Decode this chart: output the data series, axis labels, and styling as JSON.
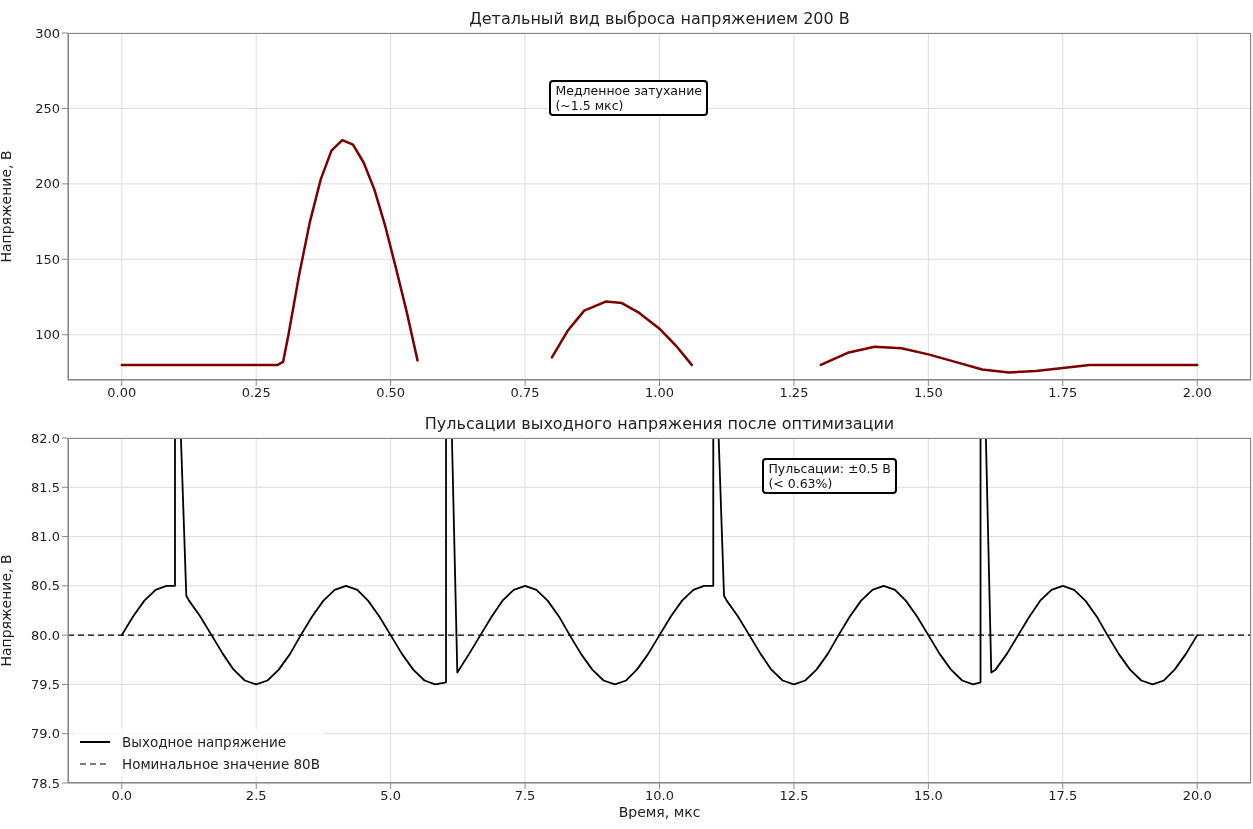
{
  "chart_data": [
    {
      "type": "line",
      "title": "Детальный вид выброса напряжением 200 В",
      "ylabel": "Напряжение, В",
      "annotations": [
        "Медленное затухание\n(~1.5 мкс)"
      ],
      "x": [
        0,
        0.29,
        0.3,
        0.31,
        0.33,
        0.35,
        0.37,
        0.39,
        0.41,
        0.43,
        0.45,
        0.47,
        0.49,
        0.51,
        0.53,
        0.55,
        0.556,
        0.67,
        0.785,
        0.8,
        0.83,
        0.86,
        0.9,
        0.93,
        0.96,
        1.0,
        1.03,
        1.06,
        1.077,
        1.16,
        1.25,
        1.3,
        1.35,
        1.4,
        1.45,
        1.5,
        1.55,
        1.6,
        1.65,
        1.7,
        1.75,
        1.8,
        2.0
      ],
      "series": [
        {
          "color": "#7b0000",
          "values": [
            80,
            80,
            82,
            100,
            140,
            175,
            203,
            222,
            229,
            226,
            214,
            196,
            172,
            144,
            115,
            83,
            null,
            null,
            null,
            85,
            103,
            116,
            122,
            121,
            115,
            104,
            93,
            80,
            null,
            null,
            null,
            80,
            88,
            92,
            91,
            87,
            82,
            77,
            75,
            76,
            78,
            80,
            80
          ]
        }
      ],
      "xlim": [
        -0.1,
        2.1
      ],
      "xticks": [
        {
          "value": 0,
          "label": "0.00"
        },
        0.25,
        {
          "value": 0.5,
          "label": "0.50"
        },
        0.75,
        {
          "value": 1,
          "label": "1.00"
        },
        1.25,
        {
          "value": 1.5,
          "label": "1.50"
        },
        1.75,
        {
          "value": 2,
          "label": "2.00"
        }
      ],
      "ylim": [
        70,
        300
      ],
      "yticks": [
        100,
        150,
        200,
        250,
        300
      ],
      "grid": true
    },
    {
      "type": "line",
      "title": "Пульсации выходного напряжения после оптимизации",
      "xlabel": "Время, мкс",
      "ylabel": "Напряжение, В",
      "annotations": [
        "Пульсации: ±0.5 В\n(< 0.63%)"
      ],
      "x": [
        0,
        0.21,
        0.42,
        0.63,
        0.83,
        0.99,
        0.99,
        1.04,
        1.1,
        1.2,
        1.25,
        1.46,
        1.67,
        1.88,
        2.08,
        2.29,
        2.5,
        2.71,
        2.92,
        3.13,
        3.33,
        3.54,
        3.75,
        3.96,
        4.17,
        4.38,
        4.58,
        4.79,
        5,
        5.21,
        5.42,
        5.63,
        5.83,
        6.03,
        6.03,
        6.08,
        6.14,
        6.24,
        6.46,
        6.67,
        6.88,
        7.08,
        7.29,
        7.5,
        7.71,
        7.92,
        8.13,
        8.33,
        8.54,
        8.75,
        8.96,
        9.17,
        9.38,
        9.58,
        9.79,
        10,
        10.21,
        10.42,
        10.63,
        10.83,
        11,
        11,
        11.05,
        11.1,
        11.2,
        11.25,
        11.46,
        11.67,
        11.88,
        12.08,
        12.29,
        12.5,
        12.71,
        12.92,
        13.13,
        13.33,
        13.54,
        13.75,
        13.96,
        14.17,
        14.38,
        14.58,
        14.79,
        15,
        15.21,
        15.42,
        15.63,
        15.83,
        15.97,
        15.97,
        16.02,
        16.07,
        16.17,
        16.25,
        16.46,
        16.67,
        16.88,
        17.08,
        17.29,
        17.5,
        17.71,
        17.92,
        18.13,
        18.33,
        18.54,
        18.75,
        18.96,
        19.17,
        19.38,
        19.58,
        19.79,
        20
      ],
      "series": [
        {
          "name": "Выходное напряжение",
          "color": "#000000",
          "values": [
            80,
            80.19,
            80.35,
            80.46,
            80.5,
            80.5,
            82,
            null,
            82,
            80.4,
            80.35,
            80.19,
            80,
            79.81,
            79.65,
            79.54,
            79.5,
            79.54,
            79.65,
            79.81,
            80,
            80.19,
            80.35,
            80.46,
            80.5,
            80.46,
            80.35,
            80.19,
            80,
            79.81,
            79.65,
            79.54,
            79.5,
            79.52,
            82,
            null,
            82,
            79.62,
            79.81,
            80,
            80.19,
            80.35,
            80.46,
            80.5,
            80.46,
            80.35,
            80.19,
            80,
            79.81,
            79.65,
            79.54,
            79.5,
            79.54,
            79.65,
            79.81,
            80,
            80.19,
            80.35,
            80.46,
            80.5,
            80.5,
            82,
            null,
            82,
            80.4,
            80.35,
            80.19,
            80,
            79.81,
            79.65,
            79.54,
            79.5,
            79.54,
            79.65,
            79.81,
            80,
            80.19,
            80.35,
            80.46,
            80.5,
            80.46,
            80.35,
            80.19,
            80,
            79.81,
            79.65,
            79.54,
            79.5,
            79.52,
            82,
            null,
            82,
            79.62,
            79.65,
            79.81,
            80,
            80.19,
            80.35,
            80.46,
            80.5,
            80.46,
            80.35,
            80.19,
            80,
            79.81,
            79.65,
            79.54,
            79.5,
            79.54,
            79.65,
            79.81,
            80
          ]
        }
      ],
      "ref_lines": [
        {
          "axis": "y",
          "value": 80,
          "label": "Номинальное значение 80В",
          "color": "#000000",
          "line_style": "dashed"
        }
      ],
      "xlim": [
        -1,
        21
      ],
      "xticks": [
        {
          "value": 0,
          "label": "0.0"
        },
        2.5,
        {
          "value": 5,
          "label": "5.0"
        },
        7.5,
        {
          "value": 10,
          "label": "10.0"
        },
        12.5,
        {
          "value": 15,
          "label": "15.0"
        },
        17.5,
        {
          "value": 20,
          "label": "20.0"
        }
      ],
      "ylim": [
        78.5,
        82
      ],
      "yticks": [
        78.5,
        {
          "value": 79,
          "label": "79.0"
        },
        79.5,
        {
          "value": 80,
          "label": "80.0"
        },
        80.5,
        {
          "value": 81,
          "label": "81.0"
        },
        81.5,
        {
          "value": 82,
          "label": "82.0"
        }
      ],
      "grid": true,
      "legend": "bottom left"
    }
  ]
}
